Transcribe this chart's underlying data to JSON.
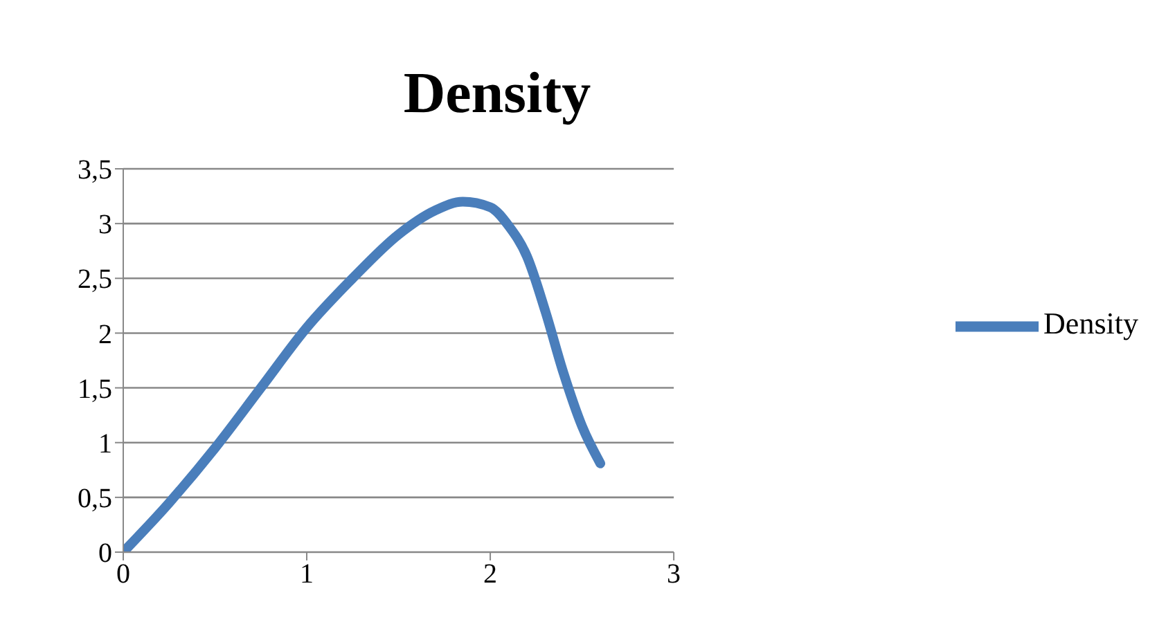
{
  "chart_data": {
    "type": "line",
    "title": "Density",
    "series": [
      {
        "name": "Density",
        "color": "#4a7ebb",
        "x": [
          0,
          0.25,
          0.5,
          0.75,
          1,
          1.25,
          1.5,
          1.7,
          1.85,
          2,
          2.1,
          2.2,
          2.3,
          2.4,
          2.5,
          2.6
        ],
        "values": [
          0,
          0.45,
          0.95,
          1.5,
          2.05,
          2.5,
          2.9,
          3.12,
          3.2,
          3.15,
          2.98,
          2.7,
          2.2,
          1.63,
          1.15,
          0.81
        ]
      }
    ],
    "xlim": [
      0,
      3
    ],
    "xticks": [
      0,
      1,
      2,
      3
    ],
    "ylim": [
      0,
      3.5
    ],
    "yticks": [
      0,
      {
        "value": 0.5,
        "label": "0,5"
      },
      1,
      {
        "value": 1.5,
        "label": "1,5"
      },
      2,
      {
        "value": 2.5,
        "label": "2,5"
      },
      3,
      {
        "value": 3.5,
        "label": "3,5"
      }
    ],
    "grid": "y",
    "legend": "right",
    "marker": "none",
    "line_style": "solid"
  }
}
